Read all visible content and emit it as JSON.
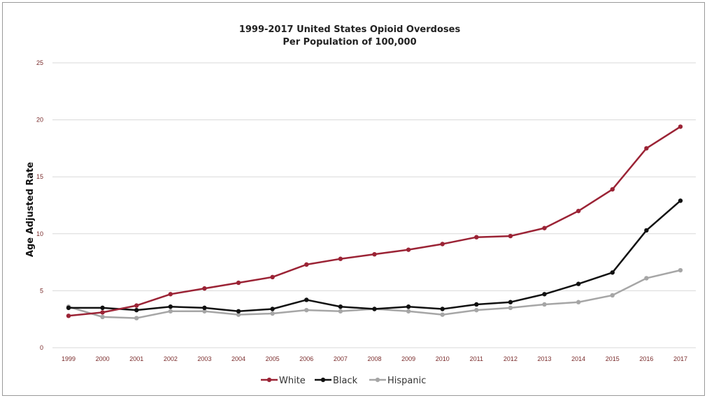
{
  "chart_data": {
    "type": "line",
    "title": "1999-2017 United States Opioid Overdoses",
    "subtitle": "Per Population of 100,000",
    "xlabel": "",
    "ylabel": "Age Adjusted Rate",
    "ylim": [
      0,
      25
    ],
    "yticks": [
      "0",
      "5",
      "10",
      "15",
      "20",
      "25"
    ],
    "categories": [
      "1999",
      "2000",
      "2001",
      "2002",
      "2003",
      "2004",
      "2005",
      "2006",
      "2007",
      "2008",
      "2009",
      "2010",
      "2011",
      "2012",
      "2013",
      "2014",
      "2015",
      "2016",
      "2017"
    ],
    "grid": true,
    "legend_position": "bottom",
    "series": [
      {
        "name": "White",
        "color": "#9b2335",
        "values": [
          2.8,
          3.1,
          3.7,
          4.7,
          5.2,
          5.7,
          6.2,
          7.3,
          7.8,
          8.2,
          8.6,
          9.1,
          9.7,
          9.8,
          10.5,
          12.0,
          13.9,
          17.5,
          19.4
        ]
      },
      {
        "name": "Black",
        "color": "#111111",
        "values": [
          3.5,
          3.5,
          3.3,
          3.6,
          3.5,
          3.2,
          3.4,
          4.2,
          3.6,
          3.4,
          3.6,
          3.4,
          3.8,
          4.0,
          4.7,
          5.6,
          6.6,
          10.3,
          12.9
        ]
      },
      {
        "name": "Hispanic",
        "color": "#a6a6a6",
        "values": [
          3.6,
          2.7,
          2.6,
          3.2,
          3.2,
          2.9,
          3.0,
          3.3,
          3.2,
          3.4,
          3.2,
          2.9,
          3.3,
          3.5,
          3.8,
          4.0,
          4.6,
          6.1,
          6.8
        ]
      }
    ]
  }
}
